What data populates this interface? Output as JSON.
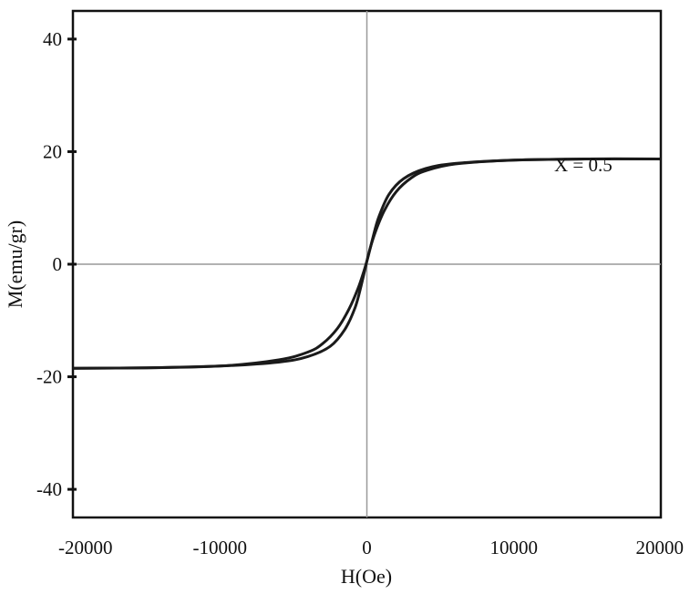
{
  "chart_data": {
    "type": "line",
    "title": "",
    "xlabel": "H(Oe)",
    "ylabel": "M(emu/gr)",
    "xlim": [
      -20000,
      20000
    ],
    "ylim": [
      -45,
      45
    ],
    "x_ticks": [
      -20000,
      -10000,
      0,
      10000,
      20000
    ],
    "y_ticks": [
      -40,
      -20,
      0,
      20,
      40
    ],
    "grid": false,
    "zero_lines": true,
    "annotation": "X = 0.5",
    "series": [
      {
        "color": "#1a1a1a",
        "x": [
          -20000,
          -15000,
          -10000,
          -6000,
          -4000,
          -3000,
          -2000,
          -1200,
          -600,
          -200,
          100,
          400,
          800,
          1500,
          2500,
          4000,
          6000,
          10000,
          15000,
          20000
        ],
        "y": [
          -18.5,
          -18.4,
          -18.1,
          -17.0,
          -15.6,
          -14.1,
          -11.4,
          -7.9,
          -4.3,
          -1.2,
          1.5,
          4.6,
          8.3,
          12.4,
          15.2,
          17.0,
          17.9,
          18.5,
          18.7,
          18.7
        ]
      },
      {
        "color": "#1a1a1a",
        "x": [
          20000,
          15000,
          10000,
          6000,
          4000,
          3000,
          2000,
          1200,
          600,
          200,
          -100,
          -400,
          -800,
          -1500,
          -2500,
          -4000,
          -6000,
          -10000,
          -15000,
          -20000
        ],
        "y": [
          18.7,
          18.7,
          18.5,
          17.8,
          16.6,
          15.3,
          12.9,
          9.6,
          5.9,
          2.6,
          -0.6,
          -3.9,
          -7.7,
          -11.6,
          -14.6,
          -16.4,
          -17.4,
          -18.1,
          -18.4,
          -18.5
        ]
      }
    ]
  }
}
